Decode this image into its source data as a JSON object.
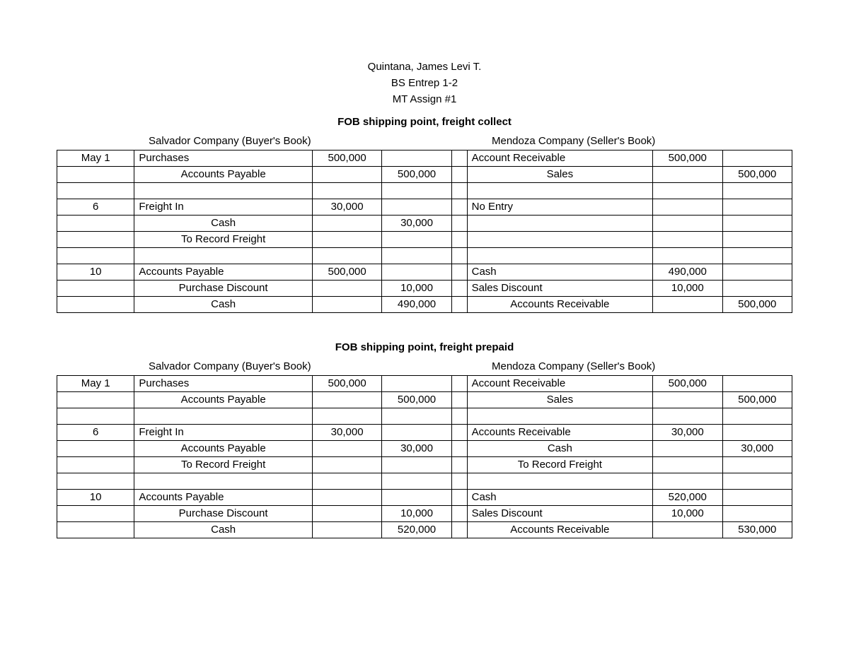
{
  "header": {
    "name": "Quintana, James Levi T.",
    "course": "BS Entrep 1-2",
    "assignment": "MT Assign #1"
  },
  "sections": [
    {
      "title": "FOB shipping point, freight collect",
      "buyer_label": "Salvador Company (Buyer's Book)",
      "seller_label": "Mendoza Company (Seller's Book)",
      "rows": [
        {
          "date": "May 1",
          "b_desc": "Purchases",
          "b_align": "left",
          "b_dr": "500,000",
          "b_cr": "",
          "s_desc": "Account Receivable",
          "s_align": "left",
          "s_dr": "500,000",
          "s_cr": ""
        },
        {
          "date": "",
          "b_desc": "Accounts Payable",
          "b_align": "indent",
          "b_dr": "",
          "b_cr": "500,000",
          "s_desc": "Sales",
          "s_align": "indent",
          "s_dr": "",
          "s_cr": "500,000"
        },
        {
          "date": "",
          "b_desc": "",
          "b_align": "left",
          "b_dr": "",
          "b_cr": "",
          "s_desc": "",
          "s_align": "left",
          "s_dr": "",
          "s_cr": ""
        },
        {
          "date": "6",
          "b_desc": "Freight In",
          "b_align": "left",
          "b_dr": "30,000",
          "b_cr": "",
          "s_desc": "No Entry",
          "s_align": "left",
          "s_dr": "",
          "s_cr": ""
        },
        {
          "date": "",
          "b_desc": "Cash",
          "b_align": "indent",
          "b_dr": "",
          "b_cr": "30,000",
          "s_desc": "",
          "s_align": "left",
          "s_dr": "",
          "s_cr": ""
        },
        {
          "date": "",
          "b_desc": "To Record Freight",
          "b_align": "indent",
          "b_dr": "",
          "b_cr": "",
          "s_desc": "",
          "s_align": "left",
          "s_dr": "",
          "s_cr": ""
        },
        {
          "date": "",
          "b_desc": "",
          "b_align": "left",
          "b_dr": "",
          "b_cr": "",
          "s_desc": "",
          "s_align": "left",
          "s_dr": "",
          "s_cr": ""
        },
        {
          "date": "10",
          "b_desc": "Accounts Payable",
          "b_align": "left",
          "b_dr": "500,000",
          "b_cr": "",
          "s_desc": "Cash",
          "s_align": "left",
          "s_dr": "490,000",
          "s_cr": ""
        },
        {
          "date": "",
          "b_desc": "Purchase Discount",
          "b_align": "indent",
          "b_dr": "",
          "b_cr": "10,000",
          "s_desc": "Sales Discount",
          "s_align": "left",
          "s_dr": "10,000",
          "s_cr": ""
        },
        {
          "date": "",
          "b_desc": "Cash",
          "b_align": "indent",
          "b_dr": "",
          "b_cr": "490,000",
          "s_desc": "Accounts Receivable",
          "s_align": "indent",
          "s_dr": "",
          "s_cr": "500,000"
        }
      ]
    },
    {
      "title": "FOB shipping point, freight prepaid",
      "buyer_label": "Salvador Company (Buyer's Book)",
      "seller_label": "Mendoza Company (Seller's Book)",
      "rows": [
        {
          "date": "May 1",
          "b_desc": "Purchases",
          "b_align": "left",
          "b_dr": "500,000",
          "b_cr": "",
          "s_desc": "Account Receivable",
          "s_align": "left",
          "s_dr": "500,000",
          "s_cr": ""
        },
        {
          "date": "",
          "b_desc": "Accounts Payable",
          "b_align": "indent",
          "b_dr": "",
          "b_cr": "500,000",
          "s_desc": "Sales",
          "s_align": "indent",
          "s_dr": "",
          "s_cr": "500,000"
        },
        {
          "date": "",
          "b_desc": "",
          "b_align": "left",
          "b_dr": "",
          "b_cr": "",
          "s_desc": "",
          "s_align": "left",
          "s_dr": "",
          "s_cr": ""
        },
        {
          "date": "6",
          "b_desc": "Freight In",
          "b_align": "left",
          "b_dr": "30,000",
          "b_cr": "",
          "s_desc": "Accounts Receivable",
          "s_align": "left",
          "s_dr": "30,000",
          "s_cr": ""
        },
        {
          "date": "",
          "b_desc": "Accounts Payable",
          "b_align": "indent",
          "b_dr": "",
          "b_cr": "30,000",
          "s_desc": "Cash",
          "s_align": "indent",
          "s_dr": "",
          "s_cr": "30,000"
        },
        {
          "date": "",
          "b_desc": "To Record Freight",
          "b_align": "indent",
          "b_dr": "",
          "b_cr": "",
          "s_desc": "To Record Freight",
          "s_align": "indent",
          "s_dr": "",
          "s_cr": ""
        },
        {
          "date": "",
          "b_desc": "",
          "b_align": "left",
          "b_dr": "",
          "b_cr": "",
          "s_desc": "",
          "s_align": "left",
          "s_dr": "",
          "s_cr": ""
        },
        {
          "date": "10",
          "b_desc": "Accounts Payable",
          "b_align": "left",
          "b_dr": "",
          "b_cr": "",
          "s_desc": "Cash",
          "s_align": "left",
          "s_dr": "520,000",
          "s_cr": ""
        },
        {
          "date": "",
          "b_desc": "Purchase Discount",
          "b_align": "indent",
          "b_dr": "",
          "b_cr": "10,000",
          "s_desc": "Sales Discount",
          "s_align": "left",
          "s_dr": "10,000",
          "s_cr": ""
        },
        {
          "date": "",
          "b_desc": "Cash",
          "b_align": "indent",
          "b_dr": "",
          "b_cr": "520,000",
          "s_desc": "Accounts Receivable",
          "s_align": "indent",
          "s_dr": "",
          "s_cr": "530,000"
        }
      ]
    }
  ]
}
